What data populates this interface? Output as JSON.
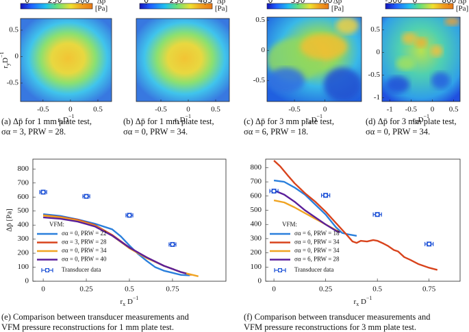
{
  "chart_data": [
    {
      "type": "heatmap",
      "caption": [
        "(a)  Δp̄ for 1 mm plate test,",
        "σα = 3, PRW = 28."
      ],
      "colorbar_label": [
        "Δp̄",
        "[Pa]"
      ],
      "clim": [
        -60,
        590
      ],
      "cticks": [
        0,
        250,
        500
      ],
      "xlim": [
        -0.91,
        0.75
      ],
      "xticks": [
        -0.5,
        0,
        0.5
      ],
      "ylim": [
        -0.85,
        0.72
      ],
      "yticks": [
        -0.5,
        0,
        0.5
      ],
      "xlabel": {
        "text": "r",
        "sub": "x",
        "tail": "D",
        "sup": "−1"
      },
      "ylabel": {
        "text": "r",
        "sub": "y",
        "tail": "D",
        "sup": "−1"
      }
    },
    {
      "type": "heatmap",
      "caption": [
        "(b)  Δp̄ for 1 mm plate test,",
        "σα = 0, PRW = 34."
      ],
      "colorbar_label": [
        "Δp̄",
        "[Pa]"
      ],
      "clim": [
        -54,
        543
      ],
      "cticks": [
        0,
        250,
        485
      ],
      "xlim": [
        -0.95,
        0.75
      ],
      "xticks": [
        -0.5,
        0,
        0.5
      ],
      "xlabel": {
        "text": "r",
        "sub": "x",
        "tail": "D",
        "sup": "−1"
      }
    },
    {
      "type": "heatmap",
      "caption": [
        "(c)  Δp̄ for 3 mm plate test,",
        "σα = 6, PRW = 18."
      ],
      "colorbar_label": [
        "Δp̄",
        "[Pa]"
      ],
      "clim": [
        -44,
        744
      ],
      "cticks": [
        0,
        350,
        700
      ],
      "xlim": [
        -0.95,
        0.6
      ],
      "xticks": [
        -0.5,
        0
      ],
      "ylim": [
        -0.85,
        0.55
      ],
      "yticks": [
        -0.5,
        0,
        0.5
      ],
      "xlabel": {
        "text": "r",
        "sub": "x",
        "tail": "D",
        "sup": "−1"
      }
    },
    {
      "type": "heatmap",
      "caption": [
        "(d)  Δp̄ for 3 mm plate test,",
        "σα = 0, PRW = 34."
      ],
      "colorbar_label": [
        "Δp̄",
        "[Pa]"
      ],
      "clim": [
        -690,
        900
      ],
      "cticks": [
        -500,
        0,
        800
      ],
      "xlim": [
        -1.18,
        0.65
      ],
      "xticks": [
        -1,
        -0.5,
        0,
        0.5
      ],
      "ylim": [
        -1.08,
        0.78
      ],
      "yticks": [
        -1,
        -0.5,
        0,
        0.5
      ],
      "xlabel": {
        "text": "r",
        "sub": "x",
        "tail": "D",
        "sup": "−1"
      }
    },
    {
      "type": "line",
      "caption": [
        "(e)  Comparison between transducer measurements and",
        "VFM pressure reconstructions for 1 mm plate test."
      ],
      "xlabel": {
        "text": "r",
        "sub": "x",
        "tail": " D",
        "sup": "−1"
      },
      "ylabel": "Δp̄ [Pa]",
      "xlim": [
        -0.06,
        1.06
      ],
      "xticks": [
        0,
        0.25,
        0.5,
        0.75
      ],
      "ylim": [
        0,
        870
      ],
      "yticks": [
        0,
        100,
        200,
        300,
        400,
        500,
        600,
        700,
        800
      ],
      "legend_title": "VFM:",
      "legend": "lower left",
      "series": [
        {
          "name": "σα = 0, PRW = 22",
          "color": "#2a7fdc",
          "x": [
            0,
            0.1,
            0.2,
            0.3,
            0.4,
            0.45,
            0.5,
            0.55,
            0.6,
            0.65,
            0.7,
            0.75,
            0.8,
            0.85
          ],
          "values": [
            478,
            465,
            440,
            410,
            370,
            320,
            255,
            195,
            145,
            100,
            75,
            60,
            45,
            42
          ]
        },
        {
          "name": "σα = 3, PRW = 28",
          "color": "#d8431c",
          "x": [
            0,
            0.1,
            0.2,
            0.3,
            0.4,
            0.5,
            0.6,
            0.7,
            0.8,
            0.86
          ],
          "values": [
            470,
            458,
            438,
            400,
            330,
            240,
            170,
            110,
            65,
            45
          ]
        },
        {
          "name": "σα = 0, PRW = 34",
          "color": "#f0a422",
          "x": [
            0,
            0.1,
            0.2,
            0.3,
            0.4,
            0.5,
            0.6,
            0.7,
            0.8,
            0.9
          ],
          "values": [
            468,
            455,
            432,
            395,
            325,
            235,
            165,
            110,
            65,
            35
          ]
        },
        {
          "name": "σα = 0, PRW = 40",
          "color": "#5a1f9a",
          "x": [
            0,
            0.1,
            0.2,
            0.3,
            0.4,
            0.5,
            0.6,
            0.7,
            0.8,
            0.83
          ],
          "values": [
            455,
            445,
            425,
            390,
            325,
            240,
            170,
            110,
            65,
            55
          ]
        }
      ],
      "markers": {
        "name": "Transducer data",
        "color": "#1a4fd6",
        "x": [
          0,
          0.25,
          0.5,
          0.75
        ],
        "values": [
          635,
          605,
          470,
          262
        ],
        "errors": [
          15,
          15,
          15,
          15
        ],
        "x_errors": [
          0.02,
          0.02,
          0.02,
          0.02
        ]
      }
    },
    {
      "type": "line",
      "caption": [
        "(f)  Comparison between transducer measurements and",
        "VFM pressure reconstructions for 3 mm plate test."
      ],
      "xlabel": {
        "text": "r",
        "sub": "x",
        "tail": " D",
        "sup": "−1"
      },
      "xlim": [
        -0.04,
        0.9
      ],
      "xticks": [
        0,
        0.25,
        0.5,
        0.75
      ],
      "ylim": [
        0,
        860
      ],
      "yticks": [
        0,
        100,
        200,
        300,
        400,
        500,
        600,
        700,
        800
      ],
      "legend_title": "VFM:",
      "legend": "lower left",
      "series": [
        {
          "name": "σα = 6, PRW = 18",
          "color": "#2a7fdc",
          "x": [
            0,
            0.05,
            0.1,
            0.15,
            0.2,
            0.25,
            0.3,
            0.33,
            0.36,
            0.4
          ],
          "values": [
            710,
            700,
            660,
            610,
            540,
            470,
            380,
            340,
            330,
            320
          ]
        },
        {
          "name": "σα = 0, PRW = 34",
          "color": "#d8431c",
          "x": [
            0,
            0.03,
            0.07,
            0.1,
            0.15,
            0.2,
            0.25,
            0.3,
            0.35,
            0.38,
            0.4,
            0.42,
            0.45,
            0.48,
            0.5,
            0.53,
            0.55,
            0.58,
            0.6,
            0.63,
            0.66,
            0.7,
            0.75,
            0.79
          ],
          "values": [
            850,
            810,
            740,
            690,
            620,
            560,
            490,
            410,
            330,
            280,
            270,
            285,
            280,
            290,
            285,
            265,
            250,
            220,
            210,
            170,
            150,
            120,
            95,
            80
          ]
        },
        {
          "name": "σα = 0, PRW = 34",
          "color": "#f0a422",
          "x": [
            0,
            0.05,
            0.1,
            0.15,
            0.2,
            0.25,
            0.3,
            0.32
          ],
          "values": [
            570,
            555,
            520,
            480,
            440,
            400,
            360,
            345
          ]
        },
        {
          "name": "σα = 6, PRW = 28",
          "color": "#5a1f9a",
          "x": [
            0,
            0.05,
            0.1,
            0.15,
            0.2,
            0.25,
            0.3,
            0.32
          ],
          "values": [
            640,
            610,
            560,
            500,
            450,
            400,
            355,
            345
          ]
        }
      ],
      "markers": {
        "name": "Transducer data",
        "color": "#1a4fd6",
        "x": [
          0,
          0.25,
          0.5,
          0.75
        ],
        "values": [
          635,
          605,
          470,
          262
        ],
        "errors": [
          15,
          15,
          15,
          15
        ],
        "x_errors": [
          0.02,
          0.02,
          0.02,
          0.02
        ]
      }
    }
  ]
}
